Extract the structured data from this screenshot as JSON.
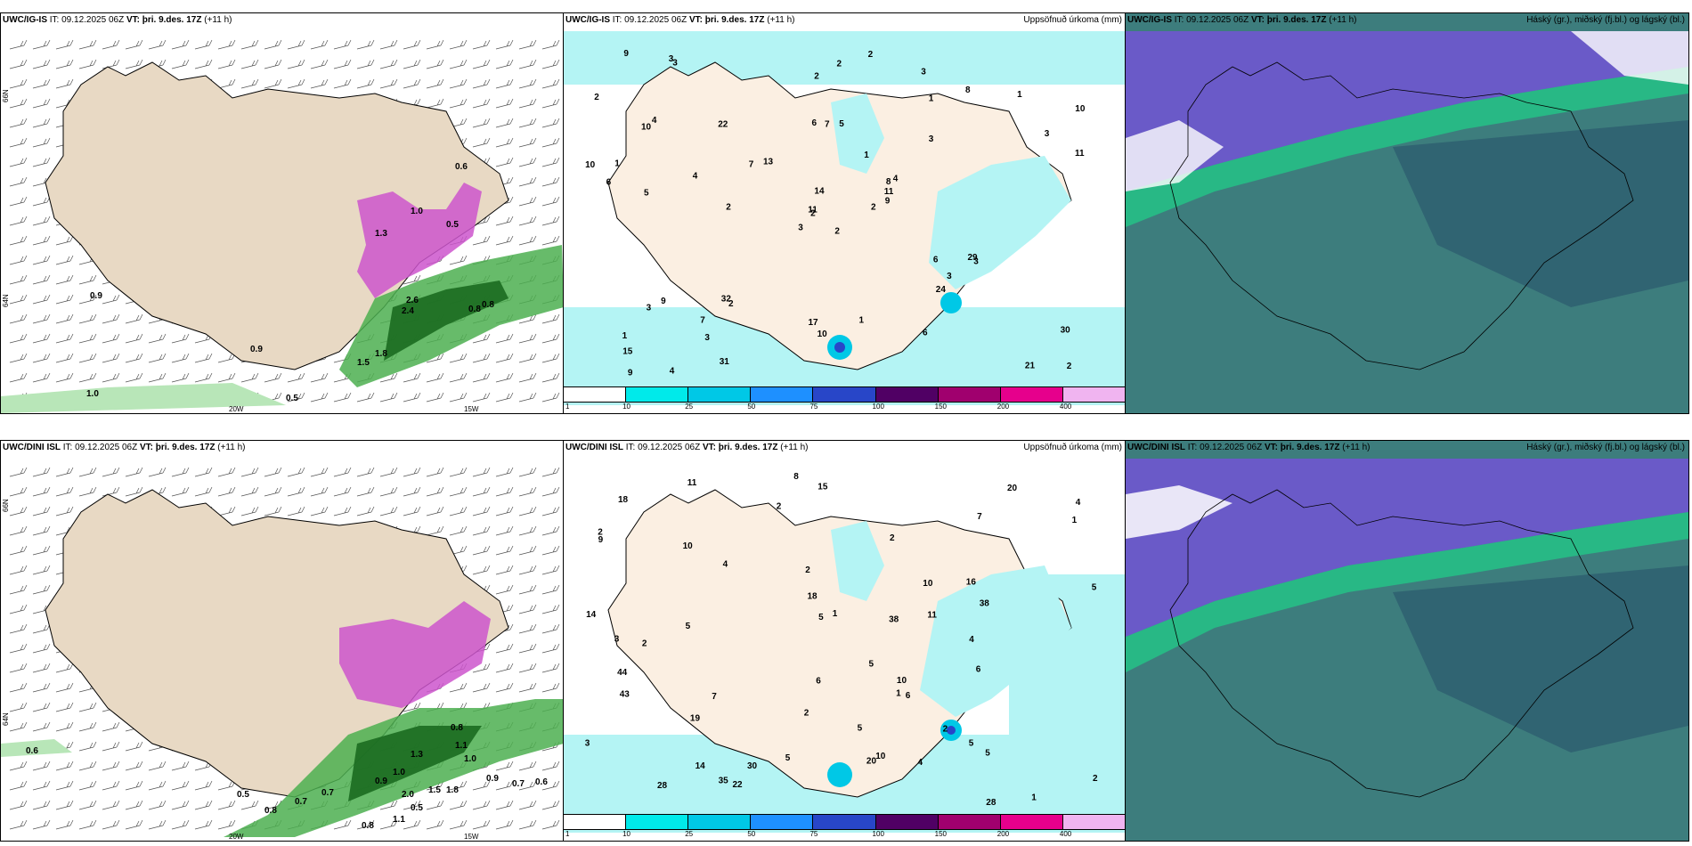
{
  "rows": [
    {
      "model_label": "UWC/IG-IS",
      "it_label": "IT:",
      "it_value": "09.12.2025 06Z",
      "vt_label": "VT:",
      "vt_value": "þri. 9.des. 17Z",
      "lead": "(+11 h)",
      "precip_values": [
        "2",
        "10",
        "2",
        "1",
        "8",
        "2",
        "3",
        "5",
        "1",
        "2",
        "3",
        "2",
        "5",
        "10",
        "3",
        "3",
        "4",
        "6",
        "1",
        "9",
        "13",
        "15",
        "3",
        "7",
        "4",
        "3",
        "4",
        "2",
        "6",
        "6",
        "11",
        "11",
        "17",
        "14",
        "22",
        "8",
        "32",
        "21",
        "30",
        "29",
        "2",
        "7",
        "4",
        "24",
        "31",
        "10",
        "11",
        "9",
        "10",
        "9",
        "3",
        "3",
        "2",
        "3",
        "6",
        "7",
        "3",
        "9",
        "1",
        "1",
        "2",
        "2",
        "1"
      ],
      "composite_values": [
        "0.9",
        "1.0",
        "0.9",
        "0.5",
        "1.8",
        "1.5",
        "2.6",
        "2.4",
        "0.8",
        "0.8",
        "1.0",
        "1.3",
        "0.5",
        "0.6"
      ],
      "lon_labels": [
        "20W",
        "15W"
      ],
      "lat_labels": [
        "66N",
        "64N",
        "64N"
      ]
    },
    {
      "model_label": "UWC/DINI ISL",
      "it_label": "IT:",
      "it_value": "09.12.2025 06Z",
      "vt_label": "VT:",
      "vt_value": "þri. 9.des. 17Z",
      "lead": "(+11 h)",
      "precip_values": [
        "14",
        "15",
        "16",
        "4",
        "2",
        "1",
        "2",
        "2",
        "2",
        "20",
        "1",
        "6",
        "8",
        "9",
        "10",
        "19",
        "10",
        "3",
        "5",
        "2",
        "2",
        "5",
        "1",
        "18",
        "14",
        "5",
        "10",
        "11",
        "22",
        "20",
        "44",
        "28",
        "38",
        "28",
        "35",
        "43",
        "38",
        "18",
        "30",
        "4",
        "5",
        "11",
        "2",
        "5",
        "6",
        "7",
        "7",
        "3",
        "5",
        "5",
        "10",
        "5",
        "6",
        "4",
        "4",
        "2",
        "1"
      ],
      "composite_values": [
        "0.6",
        "0.8",
        "0.7",
        "0.7",
        "0.9",
        "1.0",
        "1.3",
        "2.0",
        "1.5",
        "1.8",
        "0.9",
        "0.7",
        "0.6",
        "1.0",
        "1.1",
        "0.8",
        "0.5",
        "1.1",
        "0.8",
        "0.5"
      ],
      "lon_labels": [
        "20W",
        "15W"
      ],
      "lat_labels": [
        "66N",
        "64N",
        "64N"
      ]
    }
  ],
  "precip_title": "Uppsöfnuð úrkoma (mm)",
  "cloud_title": "Háský (gr.), miðský (fj.bl.) og lágský (bl.)",
  "colorbar": {
    "ticks": [
      "1",
      "10",
      "25",
      "50",
      "75",
      "100",
      "150",
      "200",
      "400"
    ],
    "colors": [
      "#ffffff",
      "#00eaea",
      "#00c8e6",
      "#1e90ff",
      "#2846c8",
      "#500064",
      "#a0006e",
      "#e6008c",
      "#f0b4f0"
    ]
  },
  "palette": {
    "land": "#e8d9c4",
    "land_light": "#fbefe2",
    "precip_light": "#b4f4f4",
    "precip_mid": "#66e0e6",
    "snow": "#cc55cc",
    "rain_green_light": "#b8e6b8",
    "rain_green": "#4caf50",
    "rain_green_dark": "#1b6b20",
    "cloud_teal": "#3d7d7d",
    "cloud_dark": "#2e5f70",
    "cloud_purple": "#6a5ac8",
    "cloud_green": "#22cc88"
  }
}
